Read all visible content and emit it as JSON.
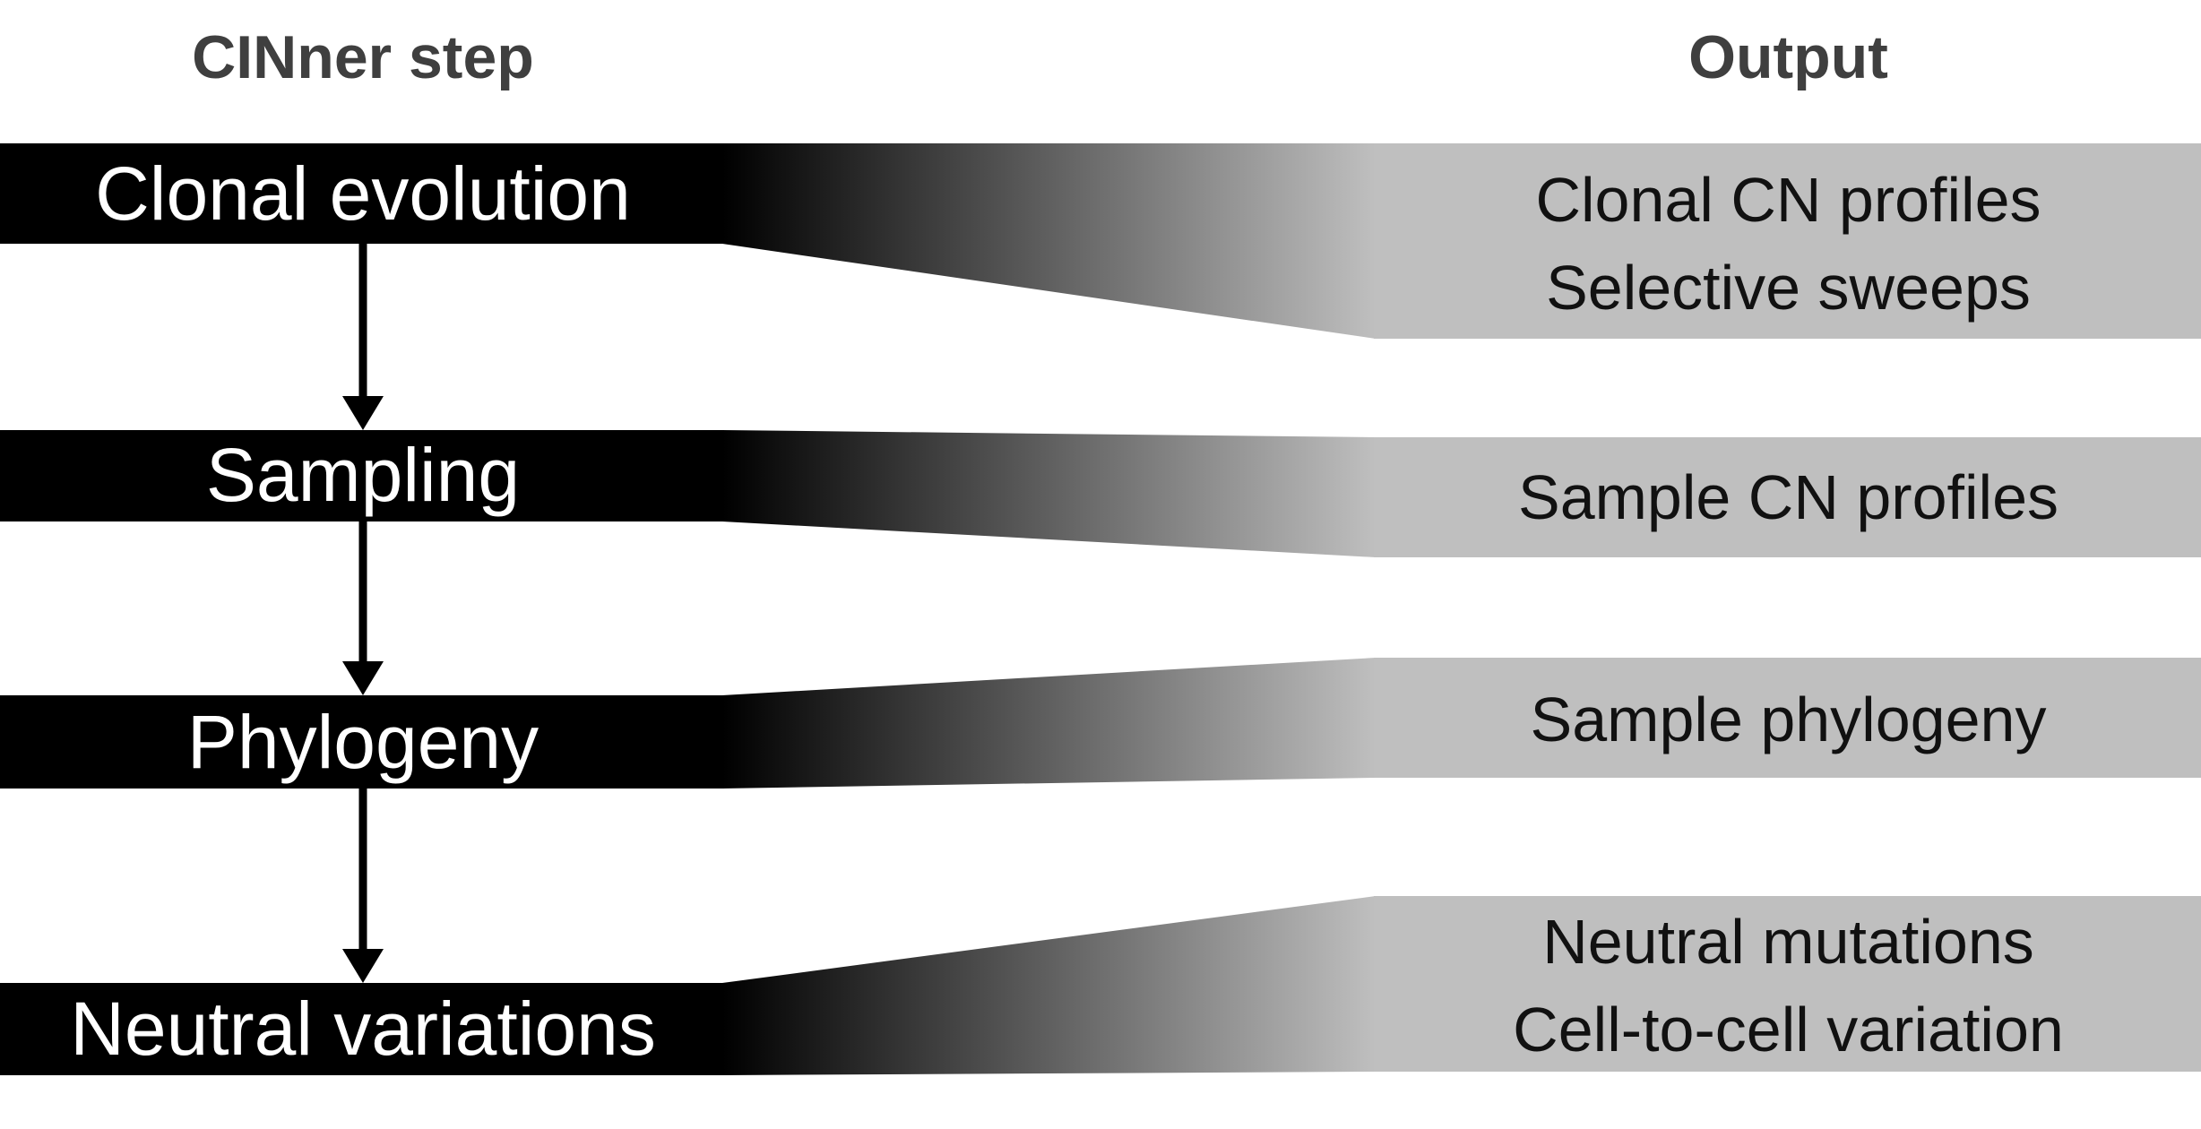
{
  "headers": {
    "step": "CINner step",
    "output": "Output"
  },
  "steps": [
    {
      "label": "Clonal evolution",
      "outputs": [
        "Clonal CN profiles",
        "Selective sweeps"
      ]
    },
    {
      "label": "Sampling",
      "outputs": [
        "Sample CN profiles"
      ]
    },
    {
      "label": "Phylogeny",
      "outputs": [
        "Sample phylogeny"
      ]
    },
    {
      "label": "Neutral variations",
      "outputs": [
        "Neutral mutations",
        "Cell-to-cell variation"
      ]
    }
  ],
  "colors": {
    "step_box": "#000000",
    "output_box": "#bfbfbf",
    "arrow": "#000000",
    "header_text": "#3f3f3f",
    "output_text": "#111111",
    "step_text": "#ffffff"
  }
}
